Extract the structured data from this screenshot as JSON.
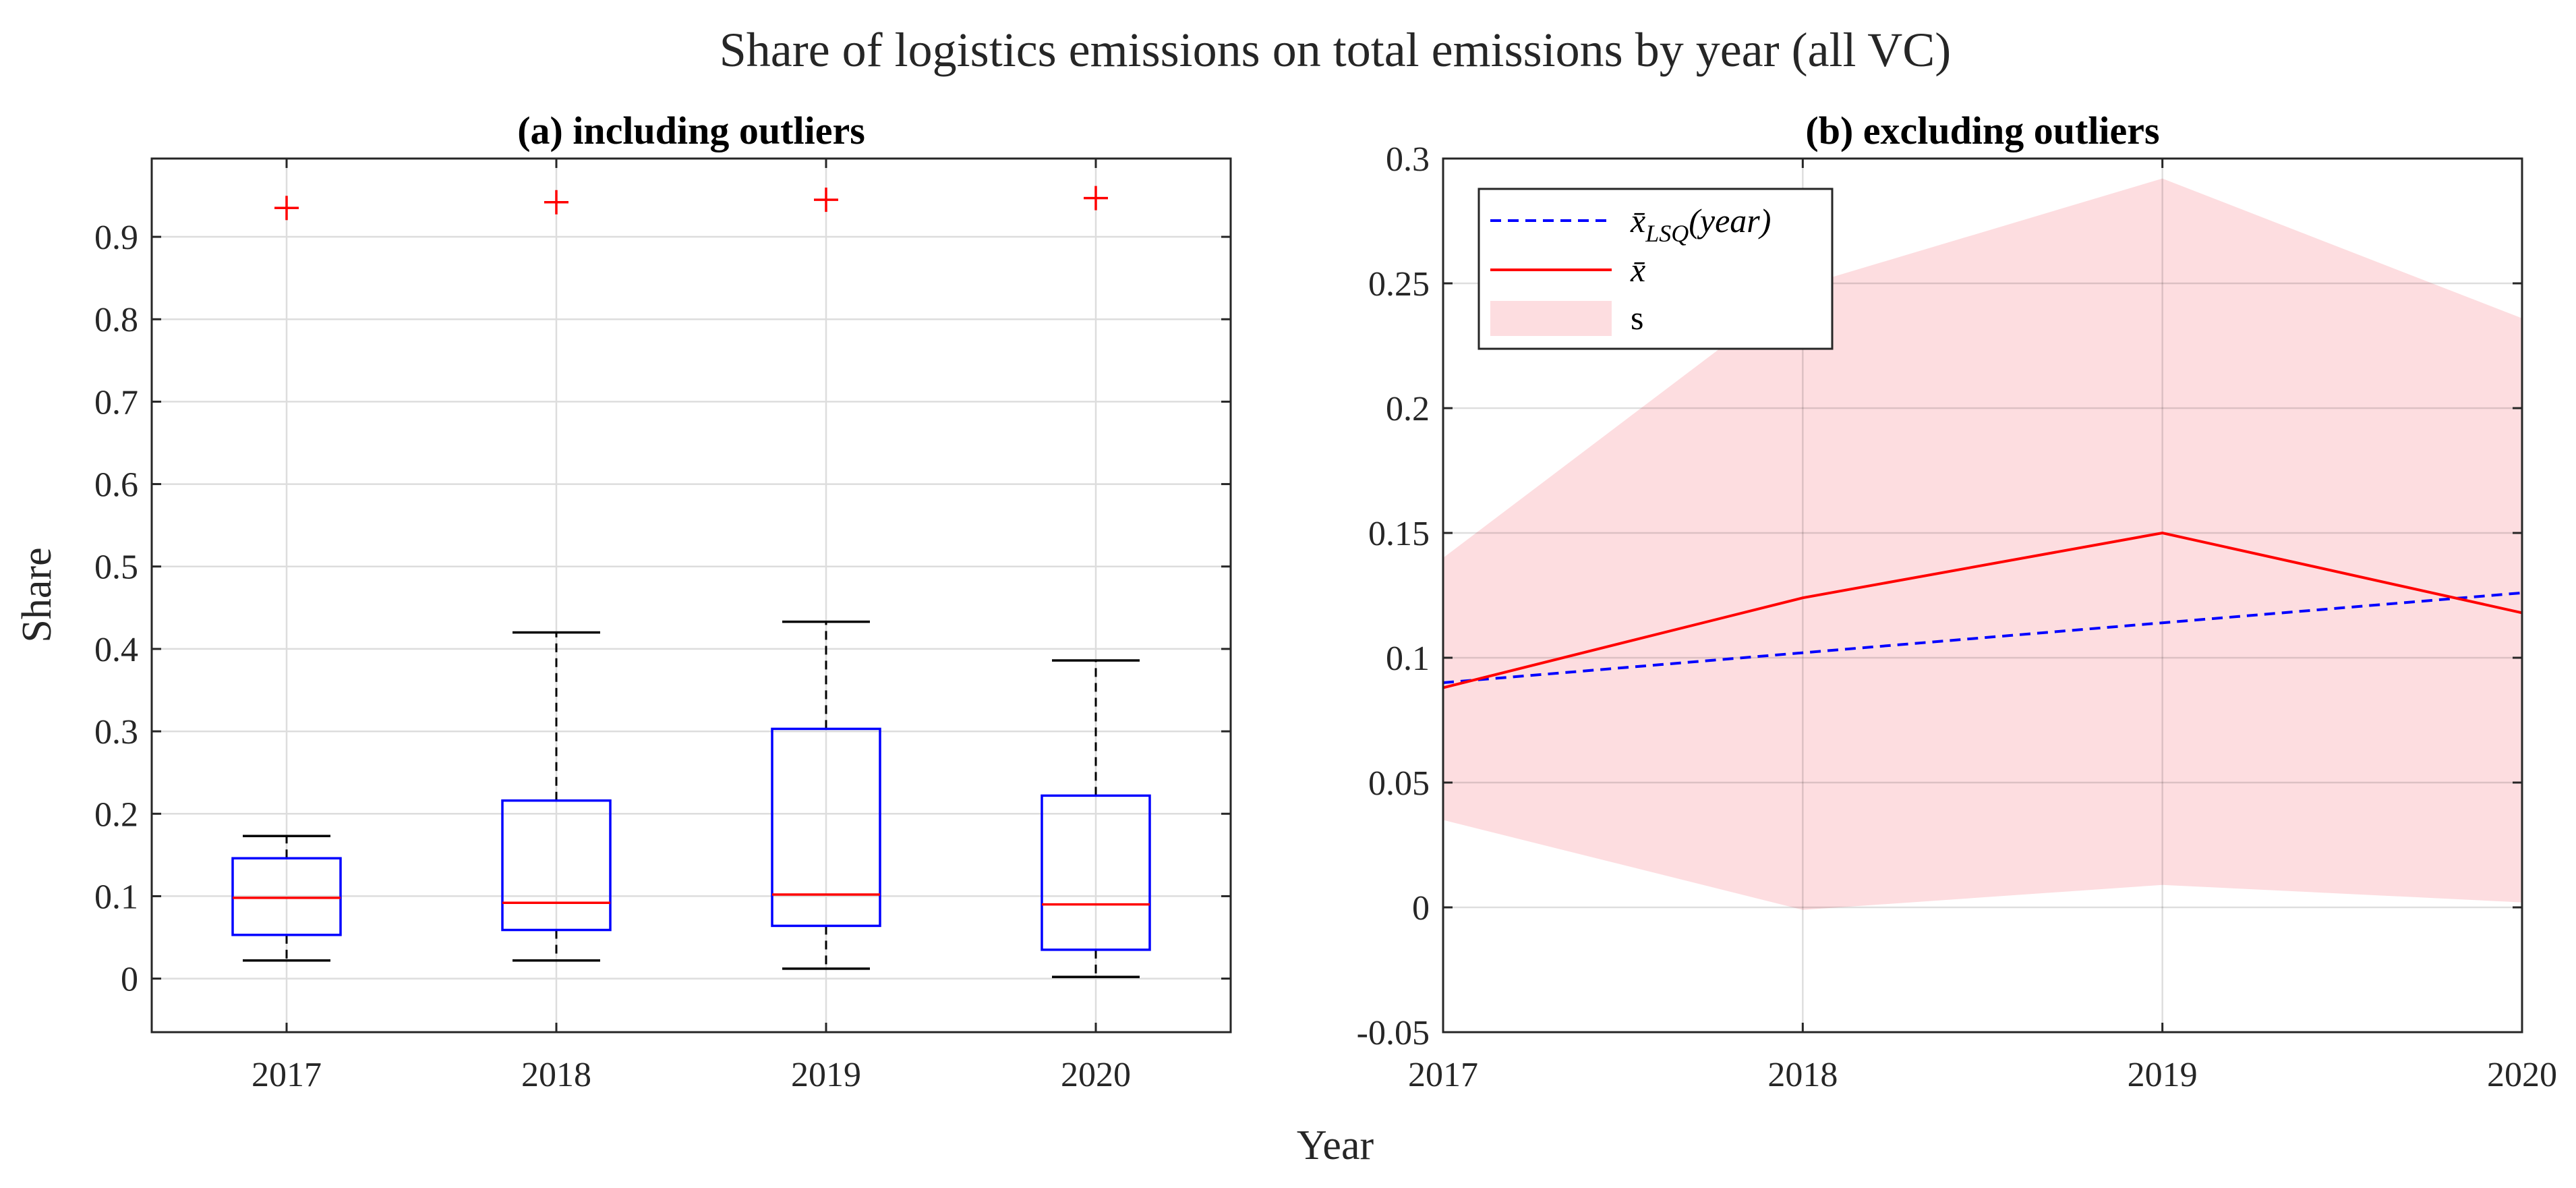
{
  "figure": {
    "title": "Share of logistics emissions on total emissions by year (all VC)",
    "xlabel": "Year"
  },
  "chart_data": [
    {
      "type": "box",
      "title": "(a) including outliers",
      "ylabel": "Share",
      "categories": [
        "2017",
        "2018",
        "2019",
        "2020"
      ],
      "ylim": [
        -0.065,
        0.995
      ],
      "yticks": [
        "0",
        "0.1",
        "0.2",
        "0.3",
        "0.4",
        "0.5",
        "0.6",
        "0.7",
        "0.8",
        "0.9"
      ],
      "grid": true,
      "boxes": [
        {
          "category": "2017",
          "whisker_low": 0.022,
          "q1": 0.053,
          "median": 0.098,
          "q3": 0.146,
          "whisker_high": 0.173,
          "outliers": [
            0.935
          ]
        },
        {
          "category": "2018",
          "whisker_low": 0.022,
          "q1": 0.059,
          "median": 0.092,
          "q3": 0.216,
          "whisker_high": 0.42,
          "outliers": [
            0.942
          ]
        },
        {
          "category": "2019",
          "whisker_low": 0.012,
          "q1": 0.064,
          "median": 0.102,
          "q3": 0.303,
          "whisker_high": 0.433,
          "outliers": [
            0.945
          ]
        },
        {
          "category": "2020",
          "whisker_low": 0.002,
          "q1": 0.035,
          "median": 0.09,
          "q3": 0.222,
          "whisker_high": 0.386,
          "outliers": [
            0.947
          ]
        }
      ],
      "colors": {
        "box": "#0000ff",
        "median": "#ff0000",
        "whisker": "#000000",
        "outlier": "#ff0000"
      }
    },
    {
      "type": "line",
      "title": "(b) excluding outliers",
      "x": [
        2017,
        2018,
        2019,
        2020
      ],
      "xticks": [
        "2017",
        "2018",
        "2019",
        "2020"
      ],
      "ylim": [
        -0.05,
        0.3
      ],
      "yticks": [
        "-0.05",
        "0",
        "0.05",
        "0.1",
        "0.15",
        "0.2",
        "0.25",
        "0.3"
      ],
      "grid": true,
      "legend_position": "top-left",
      "series": [
        {
          "name": "x̄_LSQ(year)",
          "style": "dashed",
          "color": "#0000ff",
          "values": [
            0.09,
            0.102,
            0.114,
            0.126
          ]
        },
        {
          "name": "x̄",
          "style": "solid",
          "color": "#ff0000",
          "values": [
            0.088,
            0.124,
            0.15,
            0.118
          ]
        },
        {
          "name": "s",
          "style": "band",
          "color": "#fddde0",
          "lower": [
            0.035,
            -0.001,
            0.009,
            0.002
          ],
          "upper": [
            0.14,
            0.249,
            0.292,
            0.236
          ]
        }
      ],
      "legend": {
        "lsq_symbol": "x̄",
        "lsq_subscript": "LSQ",
        "lsq_argument": "(year)",
        "mean_symbol": "x̄",
        "band_label": "s"
      }
    }
  ]
}
